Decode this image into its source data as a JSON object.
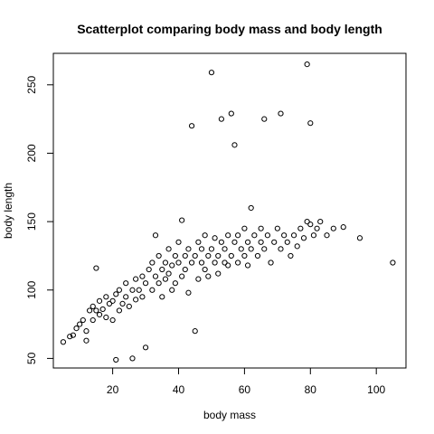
{
  "chart_data": {
    "type": "scatter",
    "title": "Scatterplot comparing body mass and body length",
    "xlabel": "body mass",
    "ylabel": "body length",
    "xlim": [
      2,
      109
    ],
    "ylim": [
      43,
      273
    ],
    "xticks": [
      "20",
      "40",
      "60",
      "80",
      "100"
    ],
    "yticks": [
      "50",
      "100",
      "150",
      "200",
      "250"
    ],
    "grid": false,
    "legend": "none",
    "marker": "open-circle",
    "series": [
      {
        "points": [
          [
            5,
            62
          ],
          [
            7,
            66
          ],
          [
            8,
            67
          ],
          [
            9,
            72
          ],
          [
            10,
            75
          ],
          [
            11,
            78
          ],
          [
            12,
            70
          ],
          [
            12,
            63
          ],
          [
            13,
            85
          ],
          [
            14,
            88
          ],
          [
            14,
            78
          ],
          [
            15,
            85
          ],
          [
            15,
            116
          ],
          [
            16,
            82
          ],
          [
            16,
            92
          ],
          [
            17,
            86
          ],
          [
            18,
            95
          ],
          [
            18,
            80
          ],
          [
            19,
            90
          ],
          [
            20,
            78
          ],
          [
            20,
            92
          ],
          [
            21,
            97
          ],
          [
            21,
            49
          ],
          [
            22,
            85
          ],
          [
            22,
            100
          ],
          [
            23,
            90
          ],
          [
            24,
            95
          ],
          [
            24,
            105
          ],
          [
            25,
            88
          ],
          [
            26,
            100
          ],
          [
            26,
            50
          ],
          [
            27,
            93
          ],
          [
            27,
            108
          ],
          [
            28,
            100
          ],
          [
            29,
            95
          ],
          [
            29,
            110
          ],
          [
            30,
            58
          ],
          [
            30,
            105
          ],
          [
            31,
            115
          ],
          [
            32,
            100
          ],
          [
            32,
            120
          ],
          [
            33,
            110
          ],
          [
            33,
            140
          ],
          [
            34,
            105
          ],
          [
            34,
            125
          ],
          [
            35,
            115
          ],
          [
            35,
            95
          ],
          [
            36,
            120
          ],
          [
            36,
            108
          ],
          [
            37,
            130
          ],
          [
            37,
            112
          ],
          [
            38,
            118
          ],
          [
            38,
            100
          ],
          [
            39,
            125
          ],
          [
            39,
            105
          ],
          [
            40,
            120
          ],
          [
            40,
            135
          ],
          [
            41,
            110
          ],
          [
            41,
            151
          ],
          [
            42,
            125
          ],
          [
            42,
            115
          ],
          [
            43,
            130
          ],
          [
            43,
            98
          ],
          [
            44,
            220
          ],
          [
            44,
            120
          ],
          [
            45,
            70
          ],
          [
            45,
            125
          ],
          [
            46,
            108
          ],
          [
            46,
            135
          ],
          [
            47,
            120
          ],
          [
            47,
            130
          ],
          [
            48,
            115
          ],
          [
            48,
            140
          ],
          [
            49,
            125
          ],
          [
            49,
            110
          ],
          [
            50,
            130
          ],
          [
            50,
            259
          ],
          [
            51,
            120
          ],
          [
            51,
            138
          ],
          [
            52,
            125
          ],
          [
            52,
            112
          ],
          [
            53,
            225
          ],
          [
            53,
            135
          ],
          [
            54,
            120
          ],
          [
            54,
            130
          ],
          [
            55,
            140
          ],
          [
            55,
            118
          ],
          [
            56,
            229
          ],
          [
            56,
            125
          ],
          [
            57,
            206
          ],
          [
            57,
            135
          ],
          [
            58,
            120
          ],
          [
            58,
            140
          ],
          [
            59,
            130
          ],
          [
            60,
            125
          ],
          [
            60,
            145
          ],
          [
            61,
            135
          ],
          [
            61,
            118
          ],
          [
            62,
            160
          ],
          [
            62,
            130
          ],
          [
            63,
            140
          ],
          [
            64,
            125
          ],
          [
            65,
            135
          ],
          [
            65,
            145
          ],
          [
            66,
            225
          ],
          [
            66,
            130
          ],
          [
            67,
            140
          ],
          [
            68,
            120
          ],
          [
            69,
            135
          ],
          [
            70,
            145
          ],
          [
            71,
            229
          ],
          [
            71,
            130
          ],
          [
            72,
            140
          ],
          [
            73,
            135
          ],
          [
            74,
            125
          ],
          [
            75,
            140
          ],
          [
            76,
            132
          ],
          [
            77,
            145
          ],
          [
            78,
            138
          ],
          [
            79,
            265
          ],
          [
            79,
            150
          ],
          [
            80,
            222
          ],
          [
            80,
            148
          ],
          [
            81,
            140
          ],
          [
            82,
            145
          ],
          [
            83,
            150
          ],
          [
            85,
            140
          ],
          [
            87,
            145
          ],
          [
            90,
            146
          ],
          [
            95,
            138
          ],
          [
            105,
            120
          ]
        ]
      }
    ]
  }
}
